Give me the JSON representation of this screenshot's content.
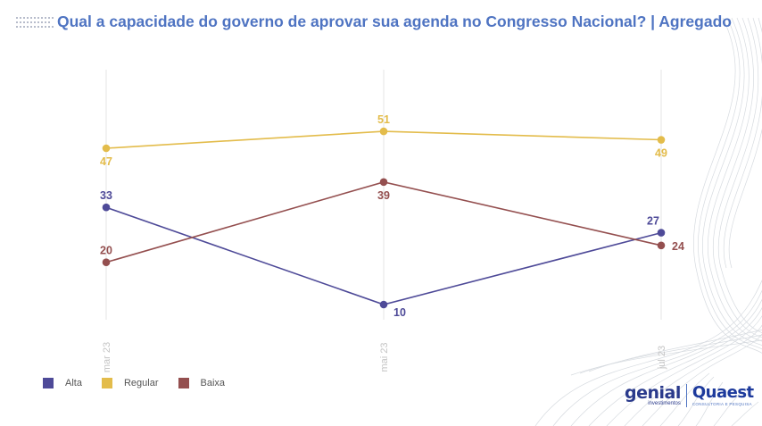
{
  "header": {
    "title": "Qual a capacidade do governo de aprovar sua agenda no Congresso Nacional? | Agregado"
  },
  "legend": {
    "items": [
      {
        "label": "Alta",
        "color": "#4e4a98"
      },
      {
        "label": "Regular",
        "color": "#e3bc4b"
      },
      {
        "label": "Baixa",
        "color": "#944f4f"
      }
    ]
  },
  "logos": {
    "genial": "genial",
    "genial_sub": "investimentos",
    "quaest": "Quaest",
    "quaest_sub": "CONSULTORIA E PESQUISA"
  },
  "colors": {
    "title": "#4f74c2",
    "alta": "#4e4a98",
    "regular": "#e3bc4b",
    "baixa": "#944f4f",
    "gridline": "#e6e6e6",
    "axis_label": "#c4c4c4"
  },
  "chart_data": {
    "type": "line",
    "title": "Qual a capacidade do governo de aprovar sua agenda no Congresso Nacional? | Agregado",
    "xlabel": "",
    "ylabel": "",
    "categories": [
      "mar 23",
      "mai 23",
      "jul 23"
    ],
    "series": [
      {
        "name": "Alta",
        "values": [
          33,
          10,
          27
        ],
        "color": "#4e4a98"
      },
      {
        "name": "Regular",
        "values": [
          47,
          51,
          49
        ],
        "color": "#e3bc4b"
      },
      {
        "name": "Baixa",
        "values": [
          20,
          39,
          24
        ],
        "color": "#944f4f"
      }
    ],
    "data_labels": true,
    "grid": "vertical lines at categories",
    "legend_position": "bottom-left",
    "ylim": [
      0,
      60
    ]
  }
}
